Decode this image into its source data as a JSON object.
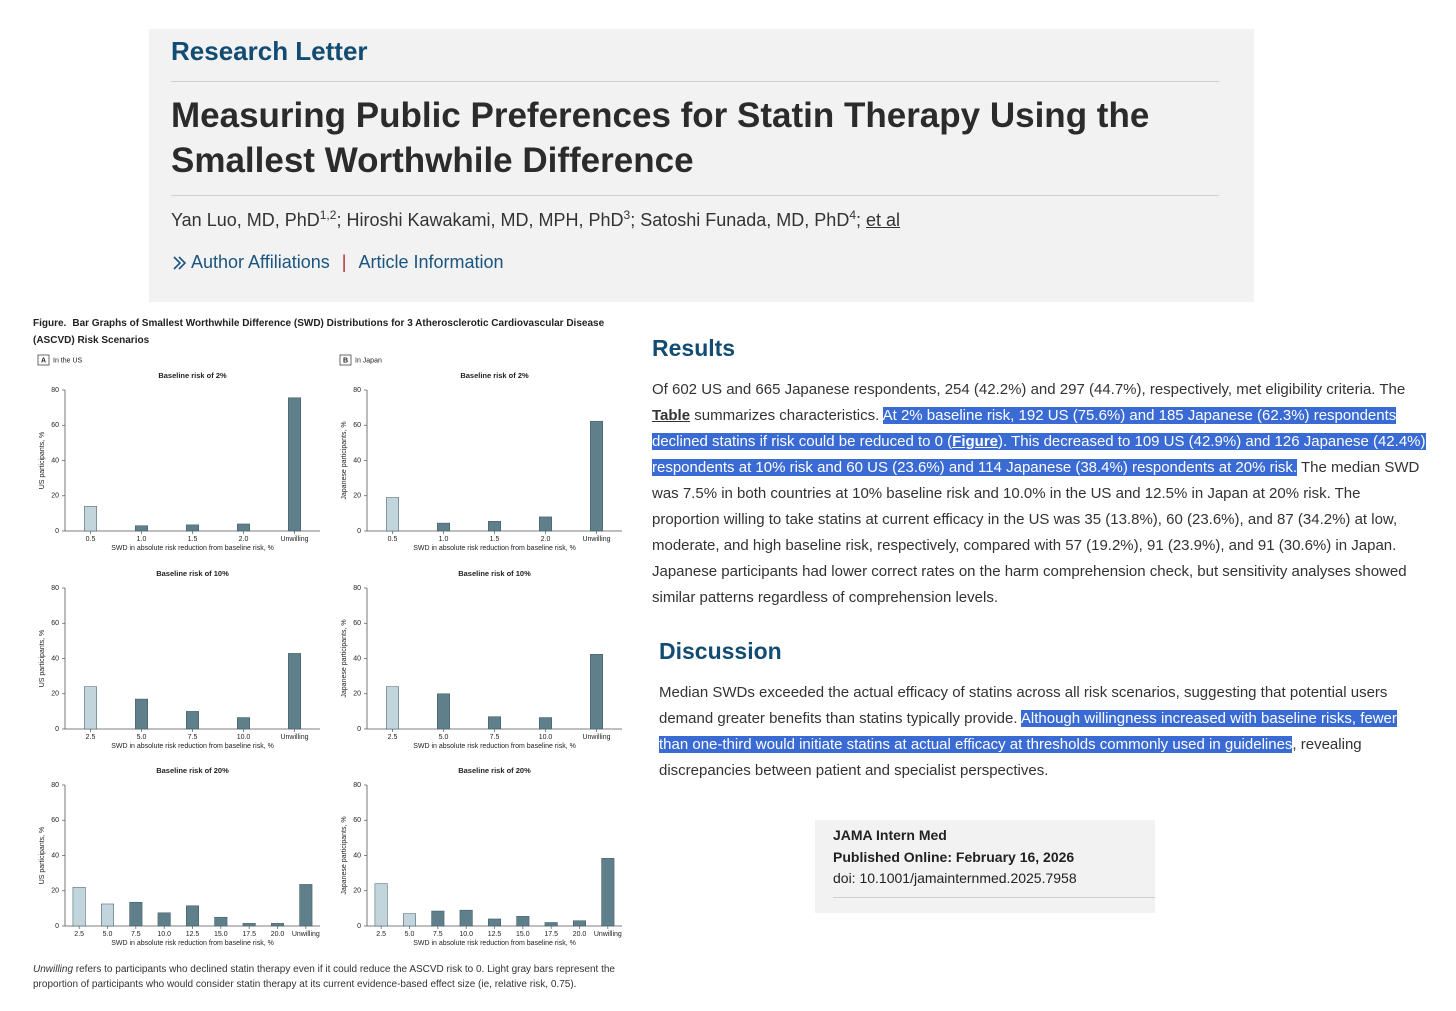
{
  "header": {
    "section": "Research Letter",
    "title": "Measuring Public Preferences for Statin Therapy Using the Smallest Worthwhile Difference",
    "authors": [
      {
        "name": "Yan Luo, MD, PhD",
        "sup": "1,2"
      },
      {
        "name": "Hiroshi Kawakami, MD, MPH, PhD",
        "sup": "3"
      },
      {
        "name": "Satoshi Funada, MD, PhD",
        "sup": "4"
      }
    ],
    "author_separator": "; ",
    "et_al": "et al",
    "links": [
      "Author Affiliations",
      "Article Information"
    ],
    "link_separator": "|"
  },
  "figure": {
    "label": "Figure.",
    "caption": "Bar Graphs of Smallest Worthwhile Difference (SWD) Distributions for 3 Atherosclerotic Cardiovascular Disease (ASCVD) Risk Scenarios",
    "panels": [
      {
        "letter": "A",
        "label": "In the US"
      },
      {
        "letter": "B",
        "label": "In Japan"
      }
    ],
    "footnote": {
      "term": "Unwilling",
      "text": " refers to participants who declined statin therapy even if it could reduce the ASCVD risk to 0. Light gray bars represent the proportion of participants who would consider statin therapy at its current evidence-based effect size (ie, relative risk, 0.75)."
    }
  },
  "chart_data": [
    {
      "type": "bar",
      "title": "Baseline risk of 2%",
      "ylabel": "US participants, %",
      "xlabel": "SWD in absolute risk reduction from baseline risk, %",
      "categories": [
        "0.5",
        "1.0",
        "1.5",
        "2.0",
        "Unwilling"
      ],
      "values": [
        14,
        3,
        3.5,
        4,
        75.6
      ],
      "colors": [
        "#c3d5dc",
        "#5f7f8b",
        "#5f7f8b",
        "#5f7f8b",
        "#5f7f8b"
      ],
      "ylim": [
        0,
        80
      ],
      "yticks": [
        0,
        20,
        40,
        60,
        80
      ]
    },
    {
      "type": "bar",
      "title": "Baseline risk of 2%",
      "ylabel": "Japanese participants, %",
      "xlabel": "SWD in absolute risk reduction from baseline risk, %",
      "categories": [
        "0.5",
        "1.0",
        "1.5",
        "2.0",
        "Unwilling"
      ],
      "values": [
        19,
        4.5,
        5.5,
        8,
        62.3
      ],
      "colors": [
        "#c3d5dc",
        "#5f7f8b",
        "#5f7f8b",
        "#5f7f8b",
        "#5f7f8b"
      ],
      "ylim": [
        0,
        80
      ],
      "yticks": [
        0,
        20,
        40,
        60,
        80
      ]
    },
    {
      "type": "bar",
      "title": "Baseline risk of 10%",
      "ylabel": "US participants, %",
      "xlabel": "SWD in absolute risk reduction from baseline risk, %",
      "categories": [
        "2.5",
        "5.0",
        "7.5",
        "10.0",
        "Unwilling"
      ],
      "values": [
        24,
        17,
        10,
        6.5,
        42.9
      ],
      "colors": [
        "#c3d5dc",
        "#5f7f8b",
        "#5f7f8b",
        "#5f7f8b",
        "#5f7f8b"
      ],
      "ylim": [
        0,
        80
      ],
      "yticks": [
        0,
        20,
        40,
        60,
        80
      ]
    },
    {
      "type": "bar",
      "title": "Baseline risk of 10%",
      "ylabel": "Japanese participants, %",
      "xlabel": "SWD in absolute risk reduction from baseline risk, %",
      "categories": [
        "2.5",
        "5.0",
        "7.5",
        "10.0",
        "Unwilling"
      ],
      "values": [
        24,
        20,
        7,
        6.5,
        42.4
      ],
      "colors": [
        "#c3d5dc",
        "#5f7f8b",
        "#5f7f8b",
        "#5f7f8b",
        "#5f7f8b"
      ],
      "ylim": [
        0,
        80
      ],
      "yticks": [
        0,
        20,
        40,
        60,
        80
      ]
    },
    {
      "type": "bar",
      "title": "Baseline risk of 20%",
      "ylabel": "US participants, %",
      "xlabel": "SWD in absolute risk reduction from baseline risk, %",
      "categories": [
        "2.5",
        "5.0",
        "7.5",
        "10.0",
        "12.5",
        "15.0",
        "17.5",
        "20.0",
        "Unwilling"
      ],
      "values": [
        22,
        12.5,
        13.5,
        7.5,
        11.5,
        5,
        1.5,
        1.5,
        23.6
      ],
      "colors": [
        "#c3d5dc",
        "#c3d5dc",
        "#5f7f8b",
        "#5f7f8b",
        "#5f7f8b",
        "#5f7f8b",
        "#5f7f8b",
        "#5f7f8b",
        "#5f7f8b"
      ],
      "ylim": [
        0,
        80
      ],
      "yticks": [
        0,
        20,
        40,
        60,
        80
      ]
    },
    {
      "type": "bar",
      "title": "Baseline risk of 20%",
      "ylabel": "Japanese participants, %",
      "xlabel": "SWD in absolute risk reduction from baseline risk, %",
      "categories": [
        "2.5",
        "5.0",
        "7.5",
        "10.0",
        "12.5",
        "15.0",
        "17.5",
        "20.0",
        "Unwilling"
      ],
      "values": [
        24,
        7,
        8.5,
        9,
        4,
        5.5,
        2,
        3,
        38.4
      ],
      "colors": [
        "#c3d5dc",
        "#c3d5dc",
        "#5f7f8b",
        "#5f7f8b",
        "#5f7f8b",
        "#5f7f8b",
        "#5f7f8b",
        "#5f7f8b",
        "#5f7f8b"
      ],
      "ylim": [
        0,
        80
      ],
      "yticks": [
        0,
        20,
        40,
        60,
        80
      ]
    }
  ],
  "results": {
    "heading": "Results",
    "segments": [
      {
        "text": "Of 602 US and 665 Japanese respondents, 254 (42.2%) and 297 (44.7%), respectively, met eligibility criteria. The ",
        "highlighted": false,
        "link": false
      },
      {
        "text": "Table",
        "highlighted": false,
        "link": true
      },
      {
        "text": " summarizes characteristics. ",
        "highlighted": false,
        "link": false
      },
      {
        "text": "At 2% baseline risk, 192 US (75.6%) and 185 Japanese (62.3%) respondents declined statins if risk could be reduced to 0 (",
        "highlighted": true,
        "link": false
      },
      {
        "text": "Figure",
        "highlighted": true,
        "link": true
      },
      {
        "text": "). This decreased to 109 US (42.9%) and 126 Japanese (42.4%) respondents at 10% risk and 60 US (23.6%) and 114 Japanese (38.4%) respondents at 20% risk.",
        "highlighted": true,
        "link": false
      },
      {
        "text": " The median SWD was 7.5% in both countries at 10% baseline risk and 10.0% in the US and 12.5% in Japan at 20% risk. The proportion willing to take statins at current efficacy in the US was 35 (13.8%), 60 (23.6%), and 87 (34.2%) at low, moderate, and high baseline risk, respectively, compared with 57 (19.2%), 91 (23.9%), and 91 (30.6%) in Japan. Japanese participants had lower correct rates on the harm comprehension check, but sensitivity analyses showed similar patterns regardless of comprehension levels.",
        "highlighted": false,
        "link": false
      }
    ]
  },
  "discussion": {
    "heading": "Discussion",
    "segments": [
      {
        "text": "Median SWDs exceeded the actual efficacy of statins across all risk scenarios, suggesting that potential users demand greater benefits than statins typically provide. ",
        "highlighted": false,
        "link": false
      },
      {
        "text": "Although willingness increased with baseline risks, fewer than one-third would initiate statins at actual efficacy at thresholds commonly used in guidelines",
        "highlighted": true,
        "link": false
      },
      {
        "text": ", revealing discrepancies between patient and specialist perspectives.",
        "highlighted": false,
        "link": false
      }
    ]
  },
  "citation": {
    "journal": "JAMA Intern Med",
    "published": "Published Online: February 16, 2026",
    "doi": "doi: 10.1001/jamainternmed.2025.7958"
  }
}
